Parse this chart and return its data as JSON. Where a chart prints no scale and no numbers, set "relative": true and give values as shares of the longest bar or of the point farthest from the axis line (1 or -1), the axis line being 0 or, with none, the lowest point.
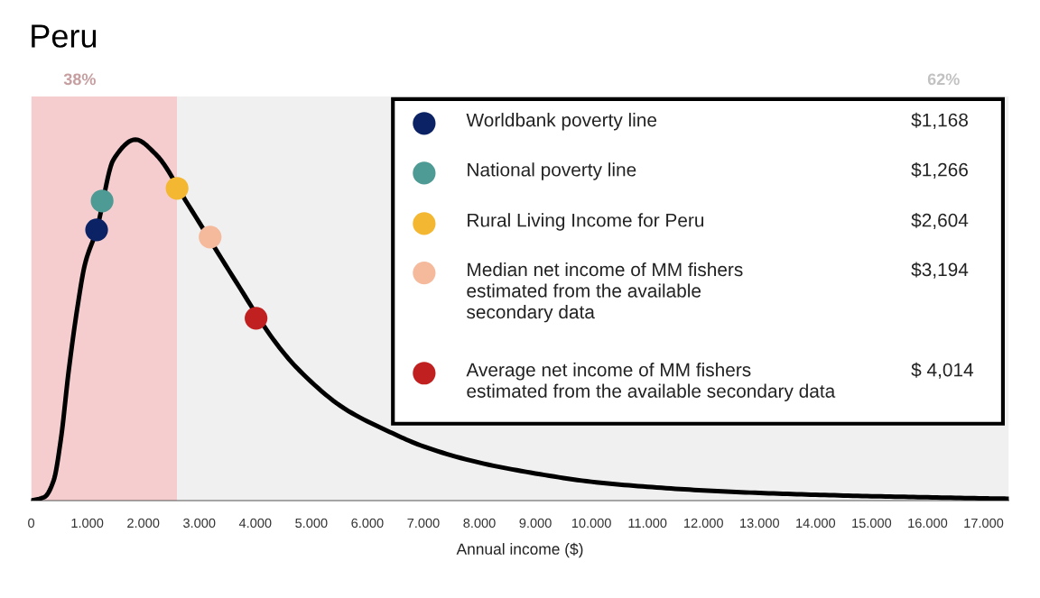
{
  "chart_data": {
    "type": "line",
    "title": "Peru",
    "xlabel": "Annual income ($)",
    "relative": true,
    "xlim": [
      0,
      17450
    ],
    "xticks": [
      0,
      {
        "value": 1000,
        "label": "1.000"
      },
      {
        "value": 2000,
        "label": "2.000"
      },
      {
        "value": 3000,
        "label": "3.000"
      },
      {
        "value": 4000,
        "label": "4.000"
      },
      {
        "value": 5000,
        "label": "5.000"
      },
      {
        "value": 6000,
        "label": "6.000"
      },
      {
        "value": 7000,
        "label": "7.000"
      },
      {
        "value": 8000,
        "label": "8.000"
      },
      {
        "value": 9000,
        "label": "9.000"
      },
      {
        "value": 10000,
        "label": "10.000"
      },
      {
        "value": 11000,
        "label": "11.000"
      },
      {
        "value": 12000,
        "label": "12.000"
      },
      {
        "value": 13000,
        "label": "13.000"
      },
      {
        "value": 14000,
        "label": "14.000"
      },
      {
        "value": 15000,
        "label": "15.000"
      },
      {
        "value": 16000,
        "label": "16.000"
      },
      {
        "value": 17000,
        "label": "17.000"
      }
    ],
    "bands": [
      {
        "axis": "x",
        "from": 0,
        "to": 2604,
        "label": "38%",
        "color": "#f5cdce"
      },
      {
        "axis": "x",
        "from": 2604,
        "to": 17450,
        "label": "62%",
        "color": "#f0f0f0"
      }
    ],
    "legend": "top right",
    "annotations": [
      "$1,168",
      "$1,266",
      "$2,604",
      "$3,194",
      "$ 4,014"
    ],
    "series": [
      {
        "color": "#000000",
        "x": [
          0,
          240,
          400,
          530,
          670,
          830,
          960,
          1168,
          1470,
          1860,
          2220,
          2800,
          3600,
          4400,
          4790,
          5590,
          6400,
          7000,
          8000,
          9000,
          10000,
          11000,
          12000,
          13000,
          14000,
          15000,
          16000,
          17000,
          17450
        ],
        "values": [
          0,
          0.01,
          0.055,
          0.17,
          0.36,
          0.54,
          0.655,
          0.75,
          0.945,
          1,
          0.96,
          0.82,
          0.62,
          0.43,
          0.36,
          0.255,
          0.19,
          0.15,
          0.105,
          0.075,
          0.052,
          0.038,
          0.028,
          0.021,
          0.016,
          0.012,
          0.009,
          0.006,
          0.005
        ]
      },
      {
        "type": "scatter",
        "name": "Worldbank poverty line",
        "color": "#0b2265",
        "x": [
          1168
        ],
        "values": [
          0.75
        ]
      },
      {
        "type": "scatter",
        "name": "National poverty line",
        "color": "#4e9a94",
        "x": [
          1266
        ],
        "values": [
          0.83
        ]
      },
      {
        "type": "scatter",
        "name": "Rural Living Income for Peru",
        "color": "#f4b731",
        "x": [
          2604
        ],
        "values": [
          0.865
        ]
      },
      {
        "type": "scatter",
        "name": "Median net income of MM fishers\nestimated from the available\nsecondary data",
        "color": "#f5b99b",
        "x": [
          3194
        ],
        "values": [
          0.73
        ]
      },
      {
        "type": "scatter",
        "name": "Average net income of MM fishers\nestimated from the available secondary data",
        "color": "#c0201f",
        "x": [
          4014
        ],
        "values": [
          0.505
        ]
      }
    ]
  }
}
